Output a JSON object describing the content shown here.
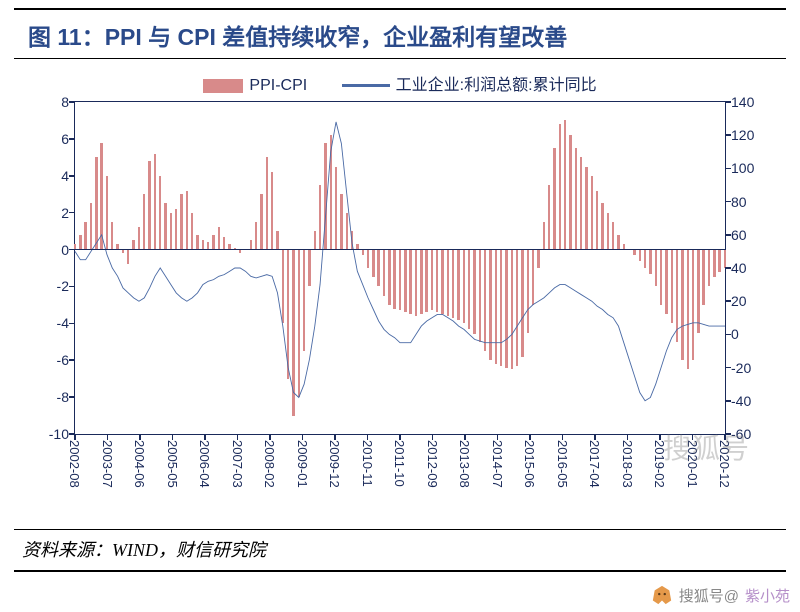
{
  "title": "图 11：PPI 与 CPI 差值持续收窄，企业盈利有望改善",
  "source": "资料来源：WIND，财信研究院",
  "watermark": "搜狐号",
  "footer_prefix": "搜狐号@",
  "footer_author": "紫小苑",
  "colors": {
    "title": "#2a4a8a",
    "axis": "#1a2a5a",
    "bar": "#d88a8a",
    "line": "#4a6aa5",
    "background": "#ffffff"
  },
  "chart": {
    "type": "combo-bar-line-dual-axis",
    "legend": [
      {
        "label": "PPI-CPI",
        "kind": "bar",
        "color": "#d88a8a"
      },
      {
        "label": "工业企业:利润总额:累计同比",
        "kind": "line",
        "color": "#4a6aa5"
      }
    ],
    "left_axis": {
      "min": -10,
      "max": 8,
      "step": 2
    },
    "right_axis": {
      "min": -60,
      "max": 140,
      "step": 20
    },
    "x_labels": [
      "2002-08",
      "2003-07",
      "2004-06",
      "2005-05",
      "2006-04",
      "2007-03",
      "2008-02",
      "2009-01",
      "2009-12",
      "2010-11",
      "2011-10",
      "2012-09",
      "2013-08",
      "2014-07",
      "2015-06",
      "2016-05",
      "2017-04",
      "2018-03",
      "2019-02",
      "2020-01",
      "2020-12"
    ],
    "bars": [
      0.3,
      0.8,
      1.5,
      2.5,
      5.0,
      5.8,
      4.0,
      1.5,
      0.3,
      -0.2,
      -0.8,
      0.5,
      1.2,
      3.0,
      4.8,
      5.2,
      4.0,
      2.5,
      2.0,
      2.2,
      3.0,
      3.2,
      2.0,
      0.8,
      0.5,
      0.4,
      0.8,
      1.2,
      0.7,
      0.3,
      0.1,
      -0.2,
      0.0,
      0.5,
      1.5,
      3.0,
      5.0,
      4.2,
      1.0,
      -4.0,
      -7.0,
      -9.0,
      -8.0,
      -5.5,
      -2.0,
      1.0,
      3.5,
      5.8,
      6.2,
      4.5,
      3.0,
      2.0,
      1.0,
      0.3,
      -0.3,
      -1.0,
      -1.5,
      -2.0,
      -2.5,
      -3.0,
      -3.2,
      -3.3,
      -3.4,
      -3.5,
      -3.6,
      -3.5,
      -3.4,
      -3.3,
      -3.4,
      -3.5,
      -3.6,
      -3.7,
      -3.8,
      -4.0,
      -4.3,
      -4.6,
      -5.0,
      -5.5,
      -6.0,
      -6.2,
      -6.3,
      -6.4,
      -6.5,
      -6.3,
      -5.8,
      -4.5,
      -3.0,
      -1.0,
      1.5,
      3.5,
      5.5,
      6.8,
      7.0,
      6.2,
      5.5,
      5.0,
      4.5,
      4.0,
      3.2,
      2.5,
      2.0,
      1.5,
      0.8,
      0.3,
      0.0,
      -0.3,
      -0.6,
      -1.0,
      -1.3,
      -2.0,
      -3.0,
      -3.5,
      -4.0,
      -5.0,
      -6.0,
      -6.5,
      -6.0,
      -4.5,
      -3.0,
      -2.0,
      -1.5,
      -1.2,
      -1.0
    ],
    "line": [
      50,
      45,
      45,
      50,
      55,
      60,
      48,
      40,
      35,
      28,
      25,
      22,
      20,
      22,
      28,
      35,
      40,
      35,
      30,
      25,
      22,
      20,
      22,
      25,
      30,
      32,
      33,
      35,
      36,
      38,
      40,
      40,
      38,
      35,
      34,
      35,
      36,
      35,
      25,
      5,
      -20,
      -35,
      -38,
      -30,
      -15,
      5,
      30,
      70,
      110,
      128,
      115,
      85,
      55,
      38,
      30,
      22,
      15,
      8,
      3,
      0,
      -2,
      -5,
      -5,
      -5,
      0,
      5,
      8,
      10,
      12,
      12,
      10,
      8,
      5,
      3,
      0,
      -3,
      -4,
      -5,
      -5,
      -5,
      -5,
      -3,
      0,
      5,
      10,
      15,
      18,
      20,
      22,
      25,
      28,
      30,
      30,
      28,
      26,
      24,
      22,
      20,
      17,
      15,
      12,
      10,
      5,
      -5,
      -15,
      -25,
      -35,
      -40,
      -38,
      -30,
      -20,
      -10,
      -2,
      3,
      5,
      6,
      7,
      7,
      6,
      5,
      5,
      5,
      5
    ]
  }
}
